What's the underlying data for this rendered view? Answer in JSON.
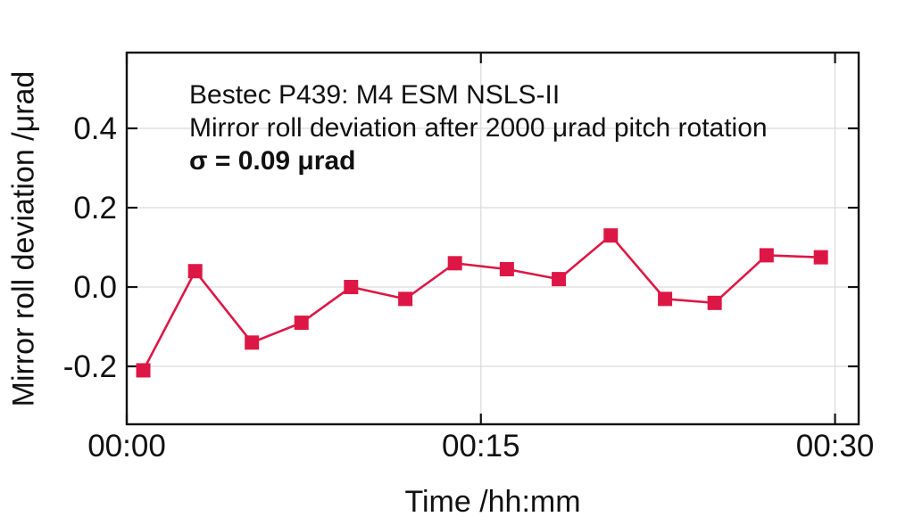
{
  "chart_data": {
    "type": "line",
    "annotation": {
      "line1": "Bestec P439: M4 ESM NSLS-II",
      "line2": "Mirror roll deviation after 2000 μrad pitch rotation",
      "line3": "σ = 0.09 μrad"
    },
    "xlabel": "Time /hh:mm",
    "ylabel": "Mirror roll deviation /μrad",
    "xlim": [
      0,
      31
    ],
    "ylim": [
      -0.346,
      0.591
    ],
    "x_unit": "minutes",
    "y_unit": "μrad",
    "grid": true,
    "legend": "none",
    "x_ticks": [
      {
        "value": 0,
        "label": "00:00"
      },
      {
        "value": 15,
        "label": "00:15"
      },
      {
        "value": 30,
        "label": "00:30"
      }
    ],
    "y_ticks": [
      {
        "value": 0.4,
        "label": "0.4"
      },
      {
        "value": 0.2,
        "label": "0.2"
      },
      {
        "value": 0.0,
        "label": "0.0"
      },
      {
        "value": -0.2,
        "label": "-0.2"
      }
    ],
    "series": [
      {
        "name": "mirror-roll-deviation",
        "marker": "square",
        "color": "#dd1745",
        "x": [
          0.7,
          2.9,
          5.3,
          7.4,
          9.5,
          11.8,
          13.9,
          16.1,
          18.3,
          20.5,
          22.8,
          24.9,
          27.1,
          29.4
        ],
        "values": [
          -0.21,
          0.04,
          -0.14,
          -0.09,
          0.0,
          -0.03,
          0.06,
          0.045,
          0.02,
          0.13,
          -0.03,
          -0.04,
          0.08,
          0.075
        ]
      }
    ],
    "colors": {
      "axis": "#111111",
      "grid": "#dadada",
      "text": "#111111",
      "background": "#ffffff",
      "series": "#dd1745"
    }
  }
}
